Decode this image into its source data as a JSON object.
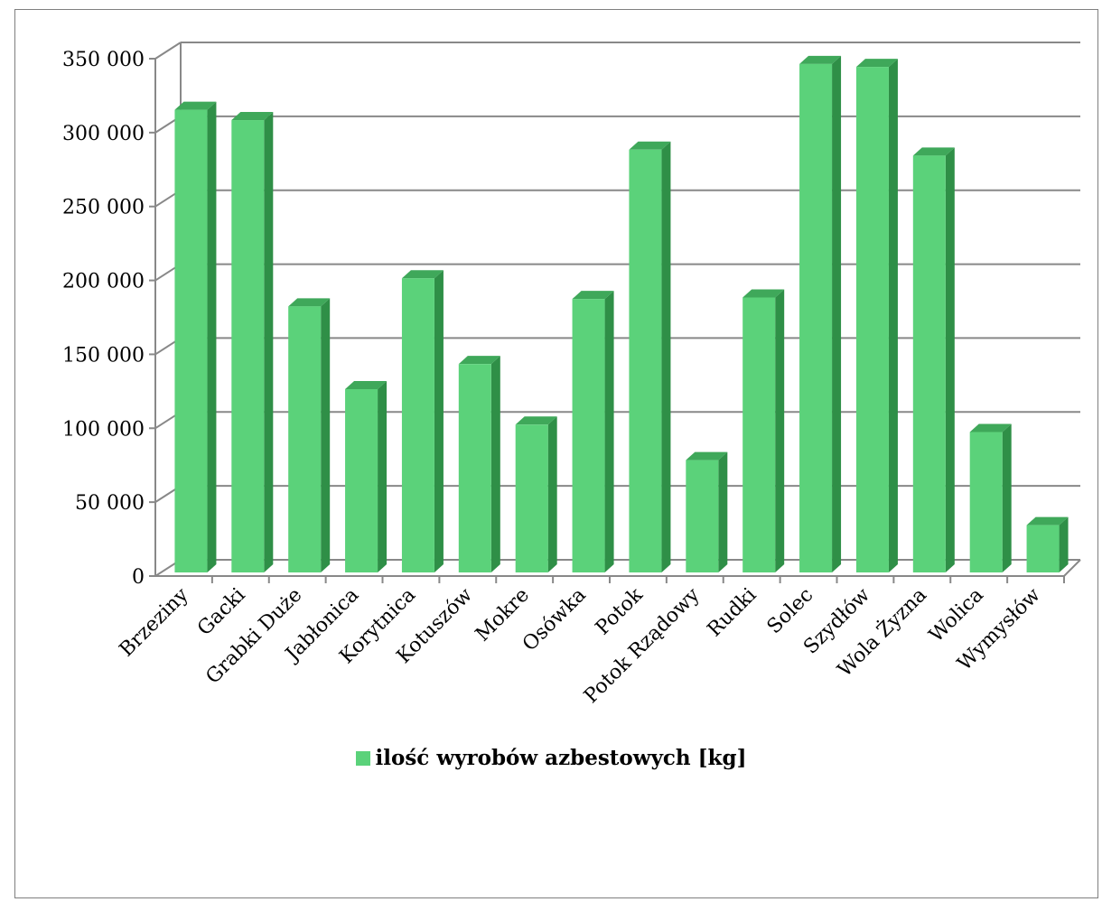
{
  "chart_data": {
    "type": "bar",
    "categories": [
      "Brzeziny",
      "Gacki",
      "Grabki Duże",
      "Jabłonica",
      "Korytnica",
      "Kotuszów",
      "Mokre",
      "Osówka",
      "Potok",
      "Potok Rządowy",
      "Rudki",
      "Solec",
      "Szydłów",
      "Wola Żyzna",
      "Wolica",
      "Wymysłów"
    ],
    "series": [
      {
        "name": "ilość wyrobów azbestowych [kg]",
        "values": [
          313000,
          306000,
          180000,
          124000,
          199000,
          141000,
          100000,
          185000,
          286000,
          76000,
          186000,
          344000,
          342000,
          282000,
          95000,
          32000
        ],
        "color": "#5bd27a"
      }
    ],
    "yticks": [
      "0",
      "50 000",
      "100 000",
      "150 000",
      "200 000",
      "250 000",
      "300 000",
      "350 000"
    ],
    "ylim": [
      0,
      350000
    ],
    "grid": true,
    "legend_position": "bottom",
    "colors": {
      "bar_front": "#5bd27a",
      "bar_side": "#2f8f47",
      "bar_top": "#3fa85a",
      "grid": "#888888",
      "axis": "#888888"
    }
  }
}
